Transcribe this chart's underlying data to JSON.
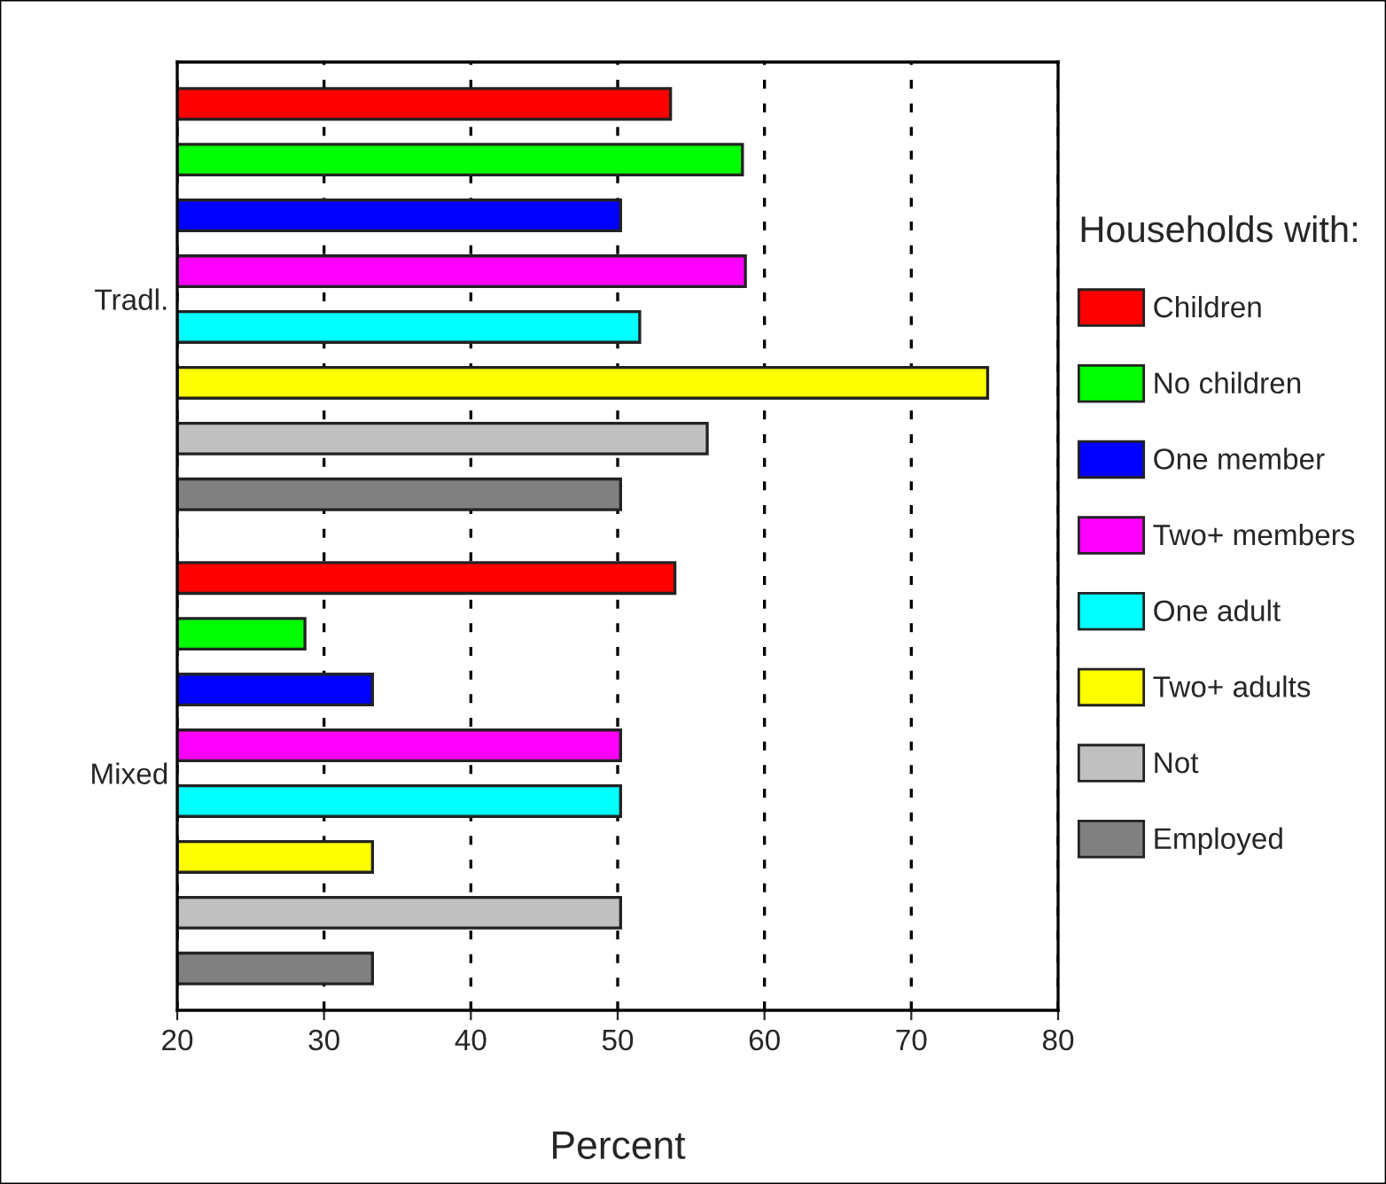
{
  "chart_data": {
    "type": "bar",
    "orientation": "horizontal",
    "xlabel": "Percent",
    "legend_title": "Households with:",
    "legend": "right",
    "grid": "x",
    "categories": [
      "Tradl.",
      "Mixed"
    ],
    "series": [
      {
        "name": "Children",
        "color": "#ff0000",
        "values": [
          53.6,
          53.9
        ]
      },
      {
        "name": "No children",
        "color": "#00ff00",
        "values": [
          58.5,
          28.7
        ]
      },
      {
        "name": "One member",
        "color": "#0000ff",
        "values": [
          50.2,
          33.3
        ]
      },
      {
        "name": "Two+ members",
        "color": "#ff00ff",
        "values": [
          58.7,
          50.2
        ]
      },
      {
        "name": "One adult",
        "color": "#00ffff",
        "values": [
          51.5,
          50.2
        ]
      },
      {
        "name": "Two+ adults",
        "color": "#ffff00",
        "values": [
          75.2,
          33.3
        ]
      },
      {
        "name": "Not",
        "color": "#c0c0c0",
        "values": [
          56.1,
          50.2
        ]
      },
      {
        "name": "Employed",
        "color": "#808080",
        "values": [
          50.2,
          33.3
        ]
      }
    ],
    "xlim": [
      20,
      80
    ],
    "xticks": [
      20,
      30,
      40,
      50,
      60,
      70,
      80
    ]
  }
}
